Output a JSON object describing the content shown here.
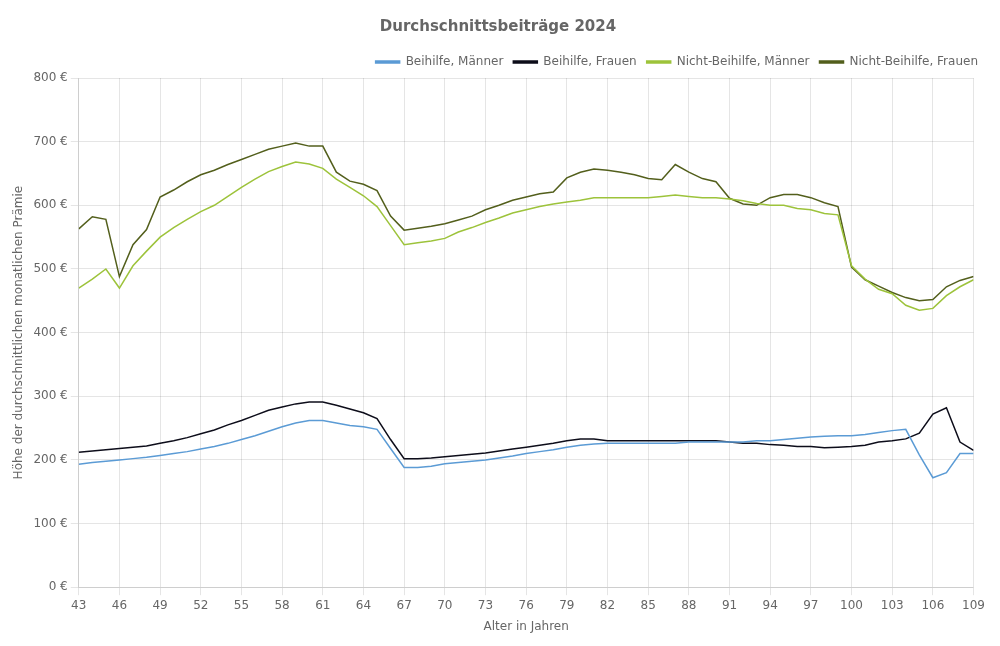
{
  "chart_data": {
    "type": "line",
    "title": "Durchschnittsbeiträge 2024",
    "xlabel": "Alter in Jahren",
    "ylabel": "Höhe der durchschnittlichen monatlichen Prämie",
    "x": [
      43,
      44,
      45,
      46,
      47,
      48,
      49,
      50,
      51,
      52,
      53,
      54,
      55,
      56,
      57,
      58,
      59,
      60,
      61,
      62,
      63,
      64,
      65,
      66,
      67,
      68,
      69,
      70,
      71,
      72,
      73,
      74,
      75,
      76,
      77,
      78,
      79,
      80,
      81,
      82,
      83,
      84,
      85,
      86,
      87,
      88,
      89,
      90,
      91,
      92,
      93,
      94,
      95,
      96,
      97,
      98,
      99,
      100,
      101,
      102,
      103,
      104,
      105,
      106,
      107,
      108,
      109
    ],
    "series": [
      {
        "name": "Beihilfe, Männer",
        "color": "#5b9bd5",
        "values": [
          193,
          196,
          198,
          200,
          202,
          204,
          207,
          210,
          213,
          217,
          221,
          226,
          232,
          238,
          245,
          252,
          258,
          262,
          262,
          258,
          254,
          252,
          248,
          218,
          188,
          188,
          190,
          194,
          196,
          198,
          200,
          203,
          206,
          210,
          213,
          216,
          220,
          223,
          225,
          226,
          226,
          226,
          226,
          226,
          226,
          228,
          228,
          228,
          228,
          228,
          230,
          230,
          232,
          234,
          236,
          237,
          238,
          238,
          240,
          243,
          246,
          248,
          208,
          172,
          180,
          210,
          210
        ]
      },
      {
        "name": "Beihilfe, Frauen",
        "color": "#0d0d1a",
        "values": [
          212,
          214,
          216,
          218,
          220,
          222,
          226,
          230,
          235,
          241,
          247,
          255,
          262,
          270,
          278,
          283,
          288,
          291,
          291,
          286,
          280,
          274,
          265,
          232,
          202,
          202,
          203,
          205,
          207,
          209,
          211,
          214,
          217,
          220,
          223,
          226,
          230,
          233,
          233,
          230,
          230,
          230,
          230,
          230,
          230,
          230,
          230,
          230,
          228,
          226,
          226,
          224,
          223,
          221,
          221,
          219,
          220,
          221,
          223,
          228,
          230,
          233,
          242,
          272,
          282,
          228,
          215
        ]
      },
      {
        "name": "Nicht-Beihilfe, Männer",
        "color": "#9dc33b",
        "values": [
          470,
          484,
          500,
          470,
          505,
          528,
          550,
          565,
          578,
          590,
          600,
          614,
          628,
          641,
          653,
          661,
          668,
          665,
          658,
          641,
          628,
          615,
          598,
          568,
          538,
          541,
          544,
          548,
          558,
          565,
          573,
          580,
          588,
          593,
          598,
          602,
          605,
          608,
          612,
          612,
          612,
          612,
          612,
          614,
          616,
          614,
          612,
          612,
          610,
          607,
          603,
          600,
          600,
          595,
          593,
          587,
          585,
          505,
          484,
          468,
          461,
          443,
          435,
          438,
          458,
          472,
          483
        ]
      },
      {
        "name": "Nicht-Beihilfe, Frauen",
        "color": "#535f1c",
        "values": [
          563,
          582,
          578,
          488,
          538,
          562,
          613,
          624,
          637,
          648,
          655,
          664,
          672,
          680,
          688,
          693,
          698,
          693,
          693,
          652,
          638,
          633,
          623,
          583,
          561,
          564,
          567,
          571,
          577,
          583,
          593,
          600,
          608,
          613,
          618,
          621,
          643,
          652,
          657,
          655,
          652,
          648,
          642,
          640,
          664,
          652,
          642,
          637,
          611,
          602,
          600,
          612,
          617,
          617,
          612,
          604,
          598,
          503,
          483,
          473,
          463,
          455,
          450,
          452,
          472,
          482,
          488
        ]
      }
    ],
    "xlim": [
      43,
      109
    ],
    "xticks": [
      43,
      46,
      49,
      52,
      55,
      58,
      61,
      64,
      67,
      70,
      73,
      76,
      79,
      82,
      85,
      88,
      91,
      94,
      97,
      100,
      103,
      106,
      109
    ],
    "ylim": [
      0,
      800
    ],
    "yticks": [
      {
        "value": 0,
        "label": "0 €"
      },
      {
        "value": 100,
        "label": "100 €"
      },
      {
        "value": 200,
        "label": "200 €"
      },
      {
        "value": 300,
        "label": "300 €"
      },
      {
        "value": 400,
        "label": "400 €"
      },
      {
        "value": 500,
        "label": "500 €"
      },
      {
        "value": 600,
        "label": "600 €"
      },
      {
        "value": 700,
        "label": "700 €"
      },
      {
        "value": 800,
        "label": "800 €"
      }
    ],
    "grid": true,
    "legend": "upper right"
  }
}
